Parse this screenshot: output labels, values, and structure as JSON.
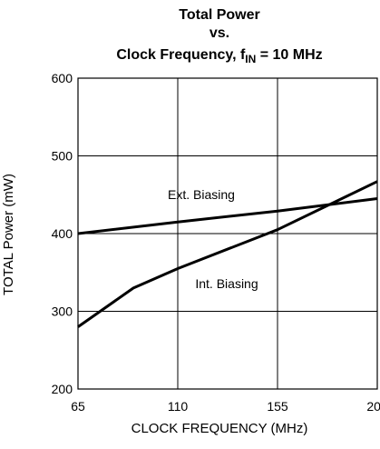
{
  "chart_data": {
    "type": "line",
    "title_lines": [
      "Total Power",
      "vs."
    ],
    "title_line3_prefix": "Clock Frequency, f",
    "title_line3_sub": "IN",
    "title_line3_suffix": " = 10 MHz",
    "xlabel": "CLOCK FREQUENCY (MHz)",
    "ylabel": "TOTAL Power (mW)",
    "xlim": [
      65,
      200
    ],
    "ylim": [
      200,
      600
    ],
    "x_ticks": [
      65,
      110,
      155,
      200
    ],
    "y_ticks": [
      200,
      300,
      400,
      500,
      600
    ],
    "x_tick_labels": [
      "65",
      "110",
      "155",
      "200"
    ],
    "y_tick_labels": [
      "200",
      "300",
      "400",
      "500",
      "600"
    ],
    "grid": true,
    "legend": "none",
    "series": [
      {
        "name": "Ext. Biasing",
        "x": [
          65,
          110,
          155,
          200
        ],
        "y": [
          400,
          415,
          429,
          445
        ]
      },
      {
        "name": "Int. Biasing",
        "x": [
          65,
          90,
          110,
          155,
          200
        ],
        "y": [
          280,
          330,
          355,
          405,
          467
        ]
      }
    ],
    "annotations": [
      {
        "text": "Ext. Biasing",
        "series": 0
      },
      {
        "text": "Int. Biasing",
        "series": 1
      }
    ]
  }
}
